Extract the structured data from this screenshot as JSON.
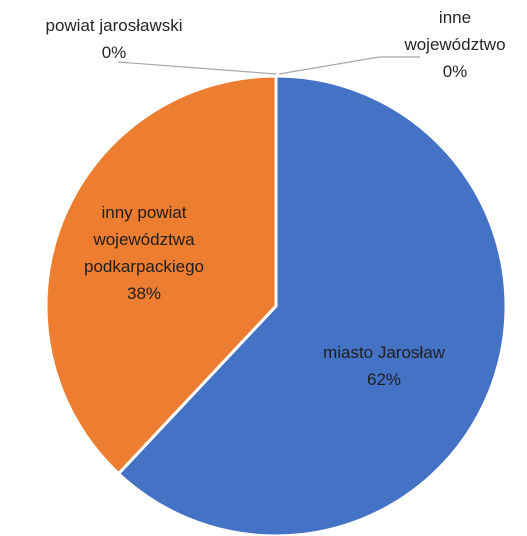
{
  "chart_data": {
    "type": "pie",
    "start_angle_deg": 0,
    "direction": "clockwise",
    "slices": [
      {
        "name": "miasto Jarosław",
        "label_lines": [
          "miasto Jarosław"
        ],
        "value": 62,
        "display": "62%",
        "color": "#4472c4"
      },
      {
        "name": "inny powiat województwa podkarpackiego",
        "label_lines": [
          "inny powiat",
          "województwa",
          "podkarpackiego"
        ],
        "value": 38,
        "display": "38%",
        "color": "#ed7d31"
      },
      {
        "name": "powiat jarosławski",
        "label_lines": [
          "powiat jarosławski"
        ],
        "value": 0,
        "display": "0%",
        "color": "#a5a5a5"
      },
      {
        "name": "inne województwo",
        "label_lines": [
          "inne",
          "województwo"
        ],
        "value": 0,
        "display": "0%",
        "color": "#ffc000"
      }
    ],
    "leader_line_color": "#a6a6a6",
    "slice_border_color": "#ffffff"
  }
}
